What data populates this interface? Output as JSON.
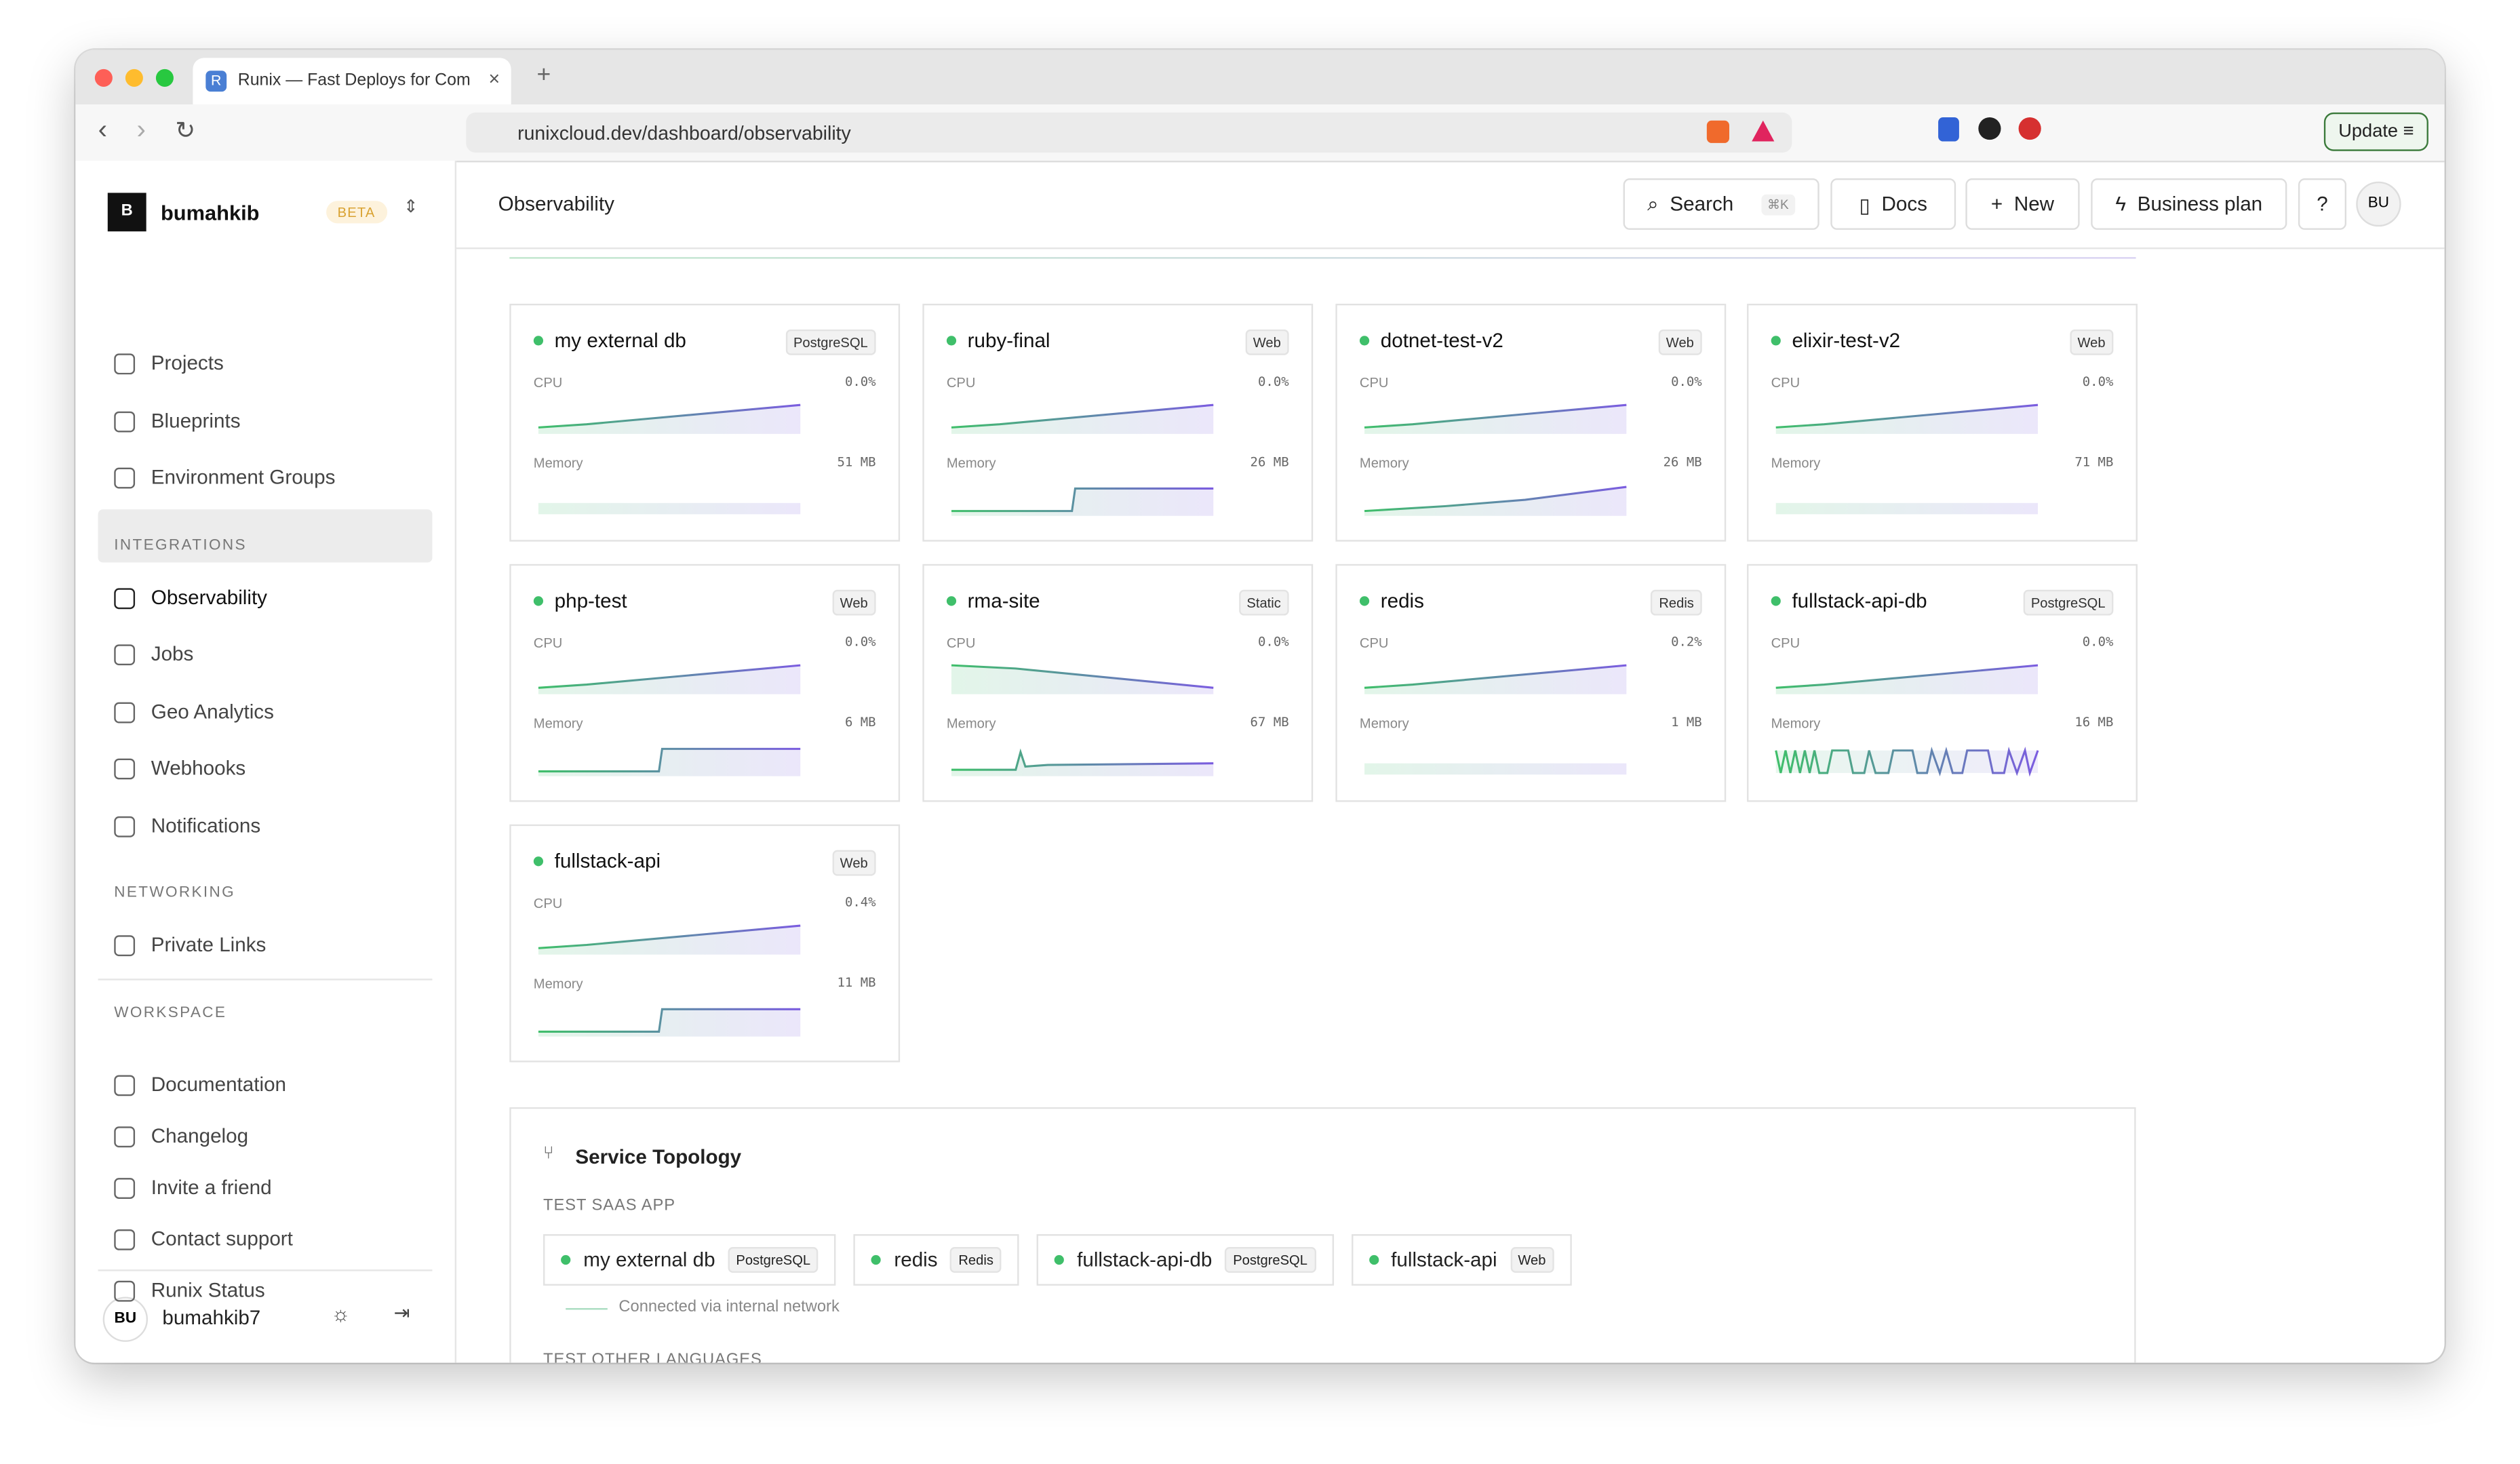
{
  "browser": {
    "tab_title": "Runix — Fast Deploys for Com",
    "url": "runixcloud.dev/dashboard/observability",
    "update": "Update"
  },
  "sidebar": {
    "workspace": "bumahkib",
    "badge": "BETA",
    "main": [
      "Projects",
      "Blueprints",
      "Environment Groups"
    ],
    "sections": [
      {
        "heading": "INTEGRATIONS",
        "items": [
          "Observability",
          "Jobs",
          "Geo Analytics",
          "Webhooks",
          "Notifications"
        ]
      },
      {
        "heading": "NETWORKING",
        "items": [
          "Private Links"
        ]
      },
      {
        "heading": "WORKSPACE",
        "items": [
          "Documentation",
          "Changelog",
          "Invite a friend",
          "Contact support",
          "Runix Status"
        ]
      }
    ],
    "user": {
      "initials": "BU",
      "name": "bumahkib7"
    }
  },
  "header": {
    "title": "Observability",
    "search": "Search",
    "shortcut": "⌘K",
    "docs": "Docs",
    "new": "New",
    "plan": "Business plan",
    "avatar": "BU"
  },
  "services": [
    {
      "name": "my external db",
      "type": "PostgreSQL",
      "cpu_label": "CPU",
      "cpu": "0.0%",
      "memory_label": "Memory",
      "memory": "51 MB"
    },
    {
      "name": "ruby-final",
      "type": "Web",
      "cpu_label": "CPU",
      "cpu": "0.0%",
      "memory_label": "Memory",
      "memory": "26 MB"
    },
    {
      "name": "dotnet-test-v2",
      "type": "Web",
      "cpu_label": "CPU",
      "cpu": "0.0%",
      "memory_label": "Memory",
      "memory": "26 MB"
    },
    {
      "name": "elixir-test-v2",
      "type": "Web",
      "cpu_label": "CPU",
      "cpu": "0.0%",
      "memory_label": "Memory",
      "memory": "71 MB"
    },
    {
      "name": "php-test",
      "type": "Web",
      "cpu_label": "CPU",
      "cpu": "0.0%",
      "memory_label": "Memory",
      "memory": "6 MB"
    },
    {
      "name": "rma-site",
      "type": "Static",
      "cpu_label": "CPU",
      "cpu": "0.0%",
      "memory_label": "Memory",
      "memory": "67 MB"
    },
    {
      "name": "redis",
      "type": "Redis",
      "cpu_label": "CPU",
      "cpu": "0.2%",
      "memory_label": "Memory",
      "memory": "1 MB"
    },
    {
      "name": "fullstack-api-db",
      "type": "PostgreSQL",
      "cpu_label": "CPU",
      "cpu": "0.0%",
      "memory_label": "Memory",
      "memory": "16 MB"
    },
    {
      "name": "fullstack-api",
      "type": "Web",
      "cpu_label": "CPU",
      "cpu": "0.4%",
      "memory_label": "Memory",
      "memory": "11 MB"
    }
  ],
  "topology": {
    "title": "Service Topology",
    "group": "TEST SAAS APP",
    "nodes": [
      {
        "name": "my external db",
        "type": "PostgreSQL"
      },
      {
        "name": "redis",
        "type": "Redis"
      },
      {
        "name": "fullstack-api-db",
        "type": "PostgreSQL"
      },
      {
        "name": "fullstack-api",
        "type": "Web"
      }
    ],
    "legend": "Connected via internal network",
    "next_group": "TEST OTHER LANGUAGES"
  }
}
